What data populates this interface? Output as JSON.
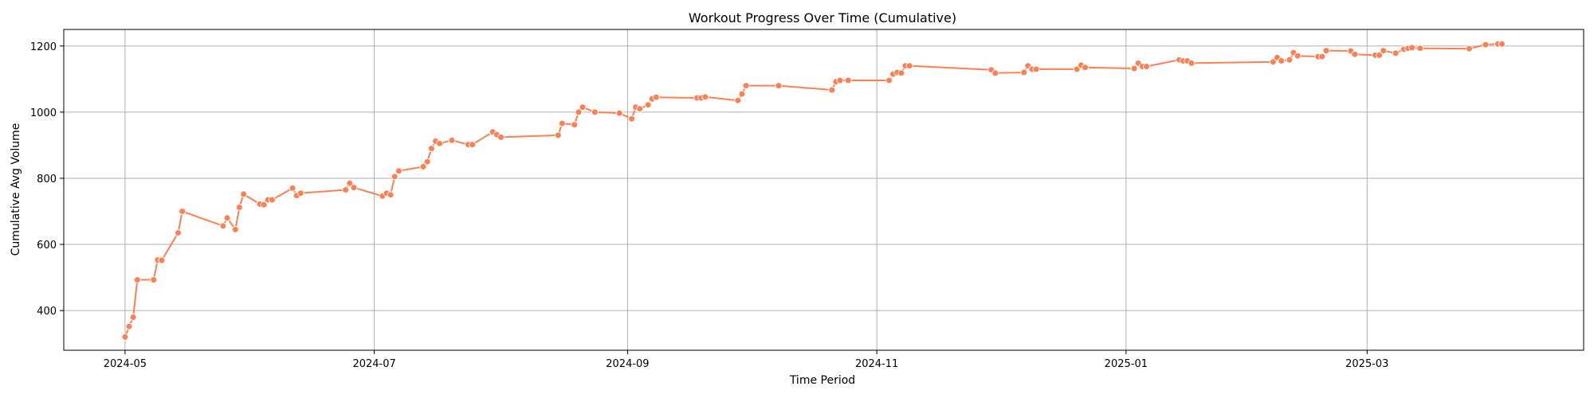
{
  "chart_data": {
    "type": "line",
    "title": "Workout Progress Over Time (Cumulative)",
    "xlabel": "Time Period",
    "ylabel": "Cumulative Avg Volume",
    "grid": true,
    "line_color": "#ff7f50",
    "marker": "circle",
    "x_ticks": [
      "2024-05",
      "2024-07",
      "2024-09",
      "2024-11",
      "2025-01",
      "2025-03"
    ],
    "y_ticks": [
      400,
      600,
      800,
      1000,
      1200
    ],
    "xlim": [
      "2024-04-16",
      "2025-04-23"
    ],
    "ylim": [
      280,
      1250
    ],
    "series": [
      {
        "x": [
          "2024-05-01",
          "2024-05-02",
          "2024-05-03",
          "2024-05-04",
          "2024-05-08",
          "2024-05-09",
          "2024-05-10",
          "2024-05-14",
          "2024-05-15",
          "2024-05-25",
          "2024-05-26",
          "2024-05-28",
          "2024-05-29",
          "2024-05-30",
          "2024-06-03",
          "2024-06-04",
          "2024-06-05",
          "2024-06-06",
          "2024-06-11",
          "2024-06-12",
          "2024-06-13",
          "2024-06-24",
          "2024-06-25",
          "2024-06-26",
          "2024-07-03",
          "2024-07-04",
          "2024-07-05",
          "2024-07-06",
          "2024-07-07",
          "2024-07-13",
          "2024-07-14",
          "2024-07-15",
          "2024-07-16",
          "2024-07-17",
          "2024-07-20",
          "2024-07-24",
          "2024-07-25",
          "2024-07-30",
          "2024-07-31",
          "2024-08-01",
          "2024-08-15",
          "2024-08-16",
          "2024-08-19",
          "2024-08-20",
          "2024-08-21",
          "2024-08-24",
          "2024-08-30",
          "2024-09-02",
          "2024-09-03",
          "2024-09-04",
          "2024-09-06",
          "2024-09-07",
          "2024-09-08",
          "2024-09-18",
          "2024-09-19",
          "2024-09-20",
          "2024-09-28",
          "2024-09-29",
          "2024-09-30",
          "2024-10-08",
          "2024-10-21",
          "2024-10-22",
          "2024-10-23",
          "2024-10-25",
          "2024-11-04",
          "2024-11-05",
          "2024-11-06",
          "2024-11-07",
          "2024-11-08",
          "2024-11-09",
          "2024-11-29",
          "2024-11-30",
          "2024-12-07",
          "2024-12-08",
          "2024-12-09",
          "2024-12-10",
          "2024-12-20",
          "2024-12-21",
          "2024-12-22",
          "2025-01-03",
          "2025-01-04",
          "2025-01-05",
          "2025-01-06",
          "2025-01-14",
          "2025-01-15",
          "2025-01-16",
          "2025-01-17",
          "2025-02-06",
          "2025-02-07",
          "2025-02-08",
          "2025-02-10",
          "2025-02-11",
          "2025-02-12",
          "2025-02-17",
          "2025-02-18",
          "2025-02-19",
          "2025-02-25",
          "2025-02-26",
          "2025-03-03",
          "2025-03-04",
          "2025-03-05",
          "2025-03-08",
          "2025-03-10",
          "2025-03-11",
          "2025-03-12",
          "2025-03-14",
          "2025-03-26",
          "2025-03-30",
          "2025-04-02",
          "2025-04-03"
        ],
        "y": [
          320,
          352,
          380,
          493,
          493,
          553,
          552,
          635,
          700,
          656,
          680,
          645,
          712,
          752,
          722,
          720,
          735,
          735,
          770,
          748,
          755,
          765,
          785,
          772,
          746,
          755,
          750,
          805,
          822,
          835,
          850,
          890,
          912,
          905,
          915,
          902,
          902,
          940,
          932,
          924,
          930,
          966,
          962,
          1000,
          1015,
          1000,
          997,
          980,
          1015,
          1010,
          1022,
          1040,
          1045,
          1043,
          1043,
          1046,
          1035,
          1055,
          1080,
          1080,
          1067,
          1092,
          1096,
          1096,
          1096,
          1115,
          1120,
          1118,
          1140,
          1140,
          1128,
          1118,
          1120,
          1140,
          1130,
          1130,
          1130,
          1142,
          1135,
          1132,
          1148,
          1138,
          1138,
          1158,
          1155,
          1155,
          1148,
          1152,
          1165,
          1155,
          1158,
          1180,
          1170,
          1168,
          1168,
          1186,
          1185,
          1175,
          1172,
          1172,
          1186,
          1178,
          1190,
          1193,
          1195,
          1193,
          1192,
          1204,
          1206,
          1206
        ]
      }
    ]
  }
}
